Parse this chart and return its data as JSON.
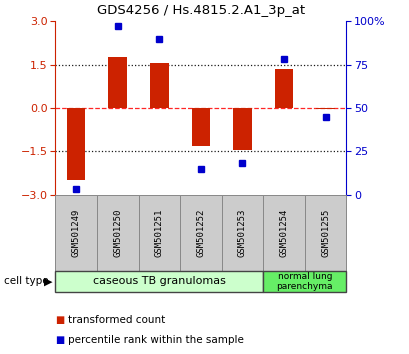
{
  "title": "GDS4256 / Hs.4815.2.A1_3p_at",
  "samples": [
    "GSM501249",
    "GSM501250",
    "GSM501251",
    "GSM501252",
    "GSM501253",
    "GSM501254",
    "GSM501255"
  ],
  "transformed_counts": [
    -2.5,
    1.75,
    1.55,
    -1.3,
    -1.45,
    1.35,
    -0.05
  ],
  "percentile_ranks": [
    3,
    97,
    90,
    15,
    18,
    78,
    45
  ],
  "ylim_left": [
    -3,
    3
  ],
  "ylim_right": [
    0,
    100
  ],
  "bar_color": "#cc2200",
  "dot_color": "#0000cc",
  "group1_label": "caseous TB granulomas",
  "group1_count": 5,
  "group2_label": "normal lung\nparenchyma",
  "group2_count": 2,
  "group1_color": "#ccffcc",
  "group2_color": "#66ee66",
  "sample_box_color": "#cccccc",
  "yticks_left": [
    -3,
    -1.5,
    0,
    1.5,
    3
  ],
  "yticks_right": [
    0,
    25,
    50,
    75,
    100
  ],
  "cell_type_label": "cell type",
  "legend_label1": "transformed count",
  "legend_label2": "percentile rank within the sample"
}
